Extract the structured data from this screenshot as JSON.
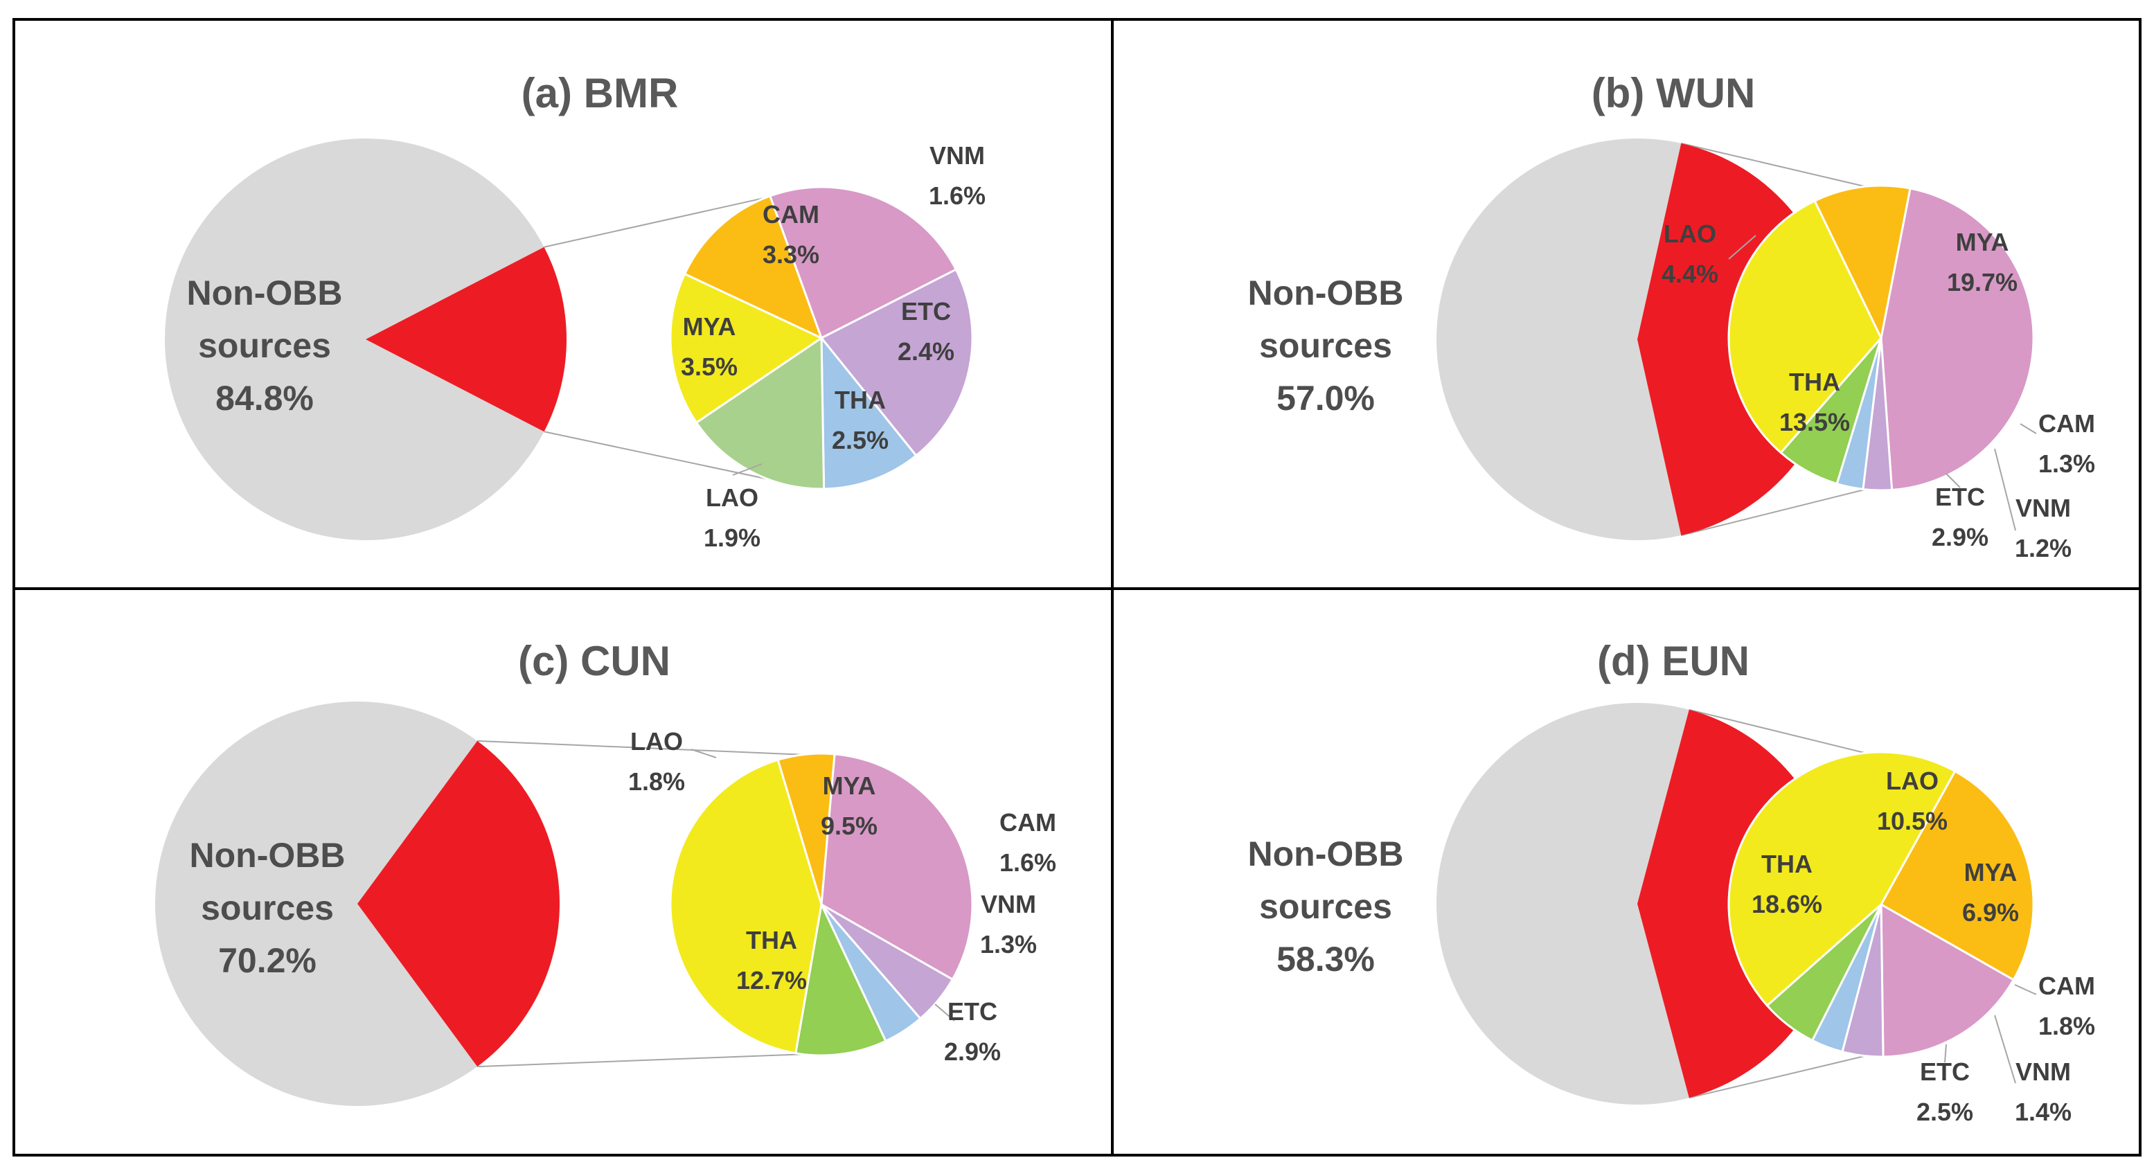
{
  "chart_data": [
    {
      "type": "pie",
      "title": "(a) BMR",
      "main": {
        "label_lines": [
          "Non-OBB",
          "sources"
        ],
        "value_label": "84.8%",
        "value": 84.8
      },
      "sub": [
        {
          "name": "CAM",
          "value_label": "3.3%",
          "value": 3.3,
          "color": "#c5a5d4"
        },
        {
          "name": "VNM",
          "value_label": "1.6%",
          "value": 1.6,
          "color": "#9fc5e8"
        },
        {
          "name": "ETC",
          "value_label": "2.4%",
          "value": 2.4,
          "color": "#a9d18e"
        },
        {
          "name": "THA",
          "value_label": "2.5%",
          "value": 2.5,
          "color": "#f2ea1c"
        },
        {
          "name": "LAO",
          "value_label": "1.9%",
          "value": 1.9,
          "color": "#fbbd13"
        },
        {
          "name": "MYA",
          "value_label": "3.5%",
          "value": 3.5,
          "color": "#d899c6"
        }
      ]
    },
    {
      "type": "pie",
      "title": "(b) WUN",
      "main": {
        "label_lines": [
          "Non-OBB",
          "sources"
        ],
        "value_label": "57.0%",
        "value": 57.0
      },
      "sub": [
        {
          "name": "MYA",
          "value_label": "19.7%",
          "value": 19.7,
          "color": "#d899c6"
        },
        {
          "name": "CAM",
          "value_label": "1.3%",
          "value": 1.3,
          "color": "#c5a5d4"
        },
        {
          "name": "VNM",
          "value_label": "1.2%",
          "value": 1.2,
          "color": "#9fc5e8"
        },
        {
          "name": "ETC",
          "value_label": "2.9%",
          "value": 2.9,
          "color": "#92cf52"
        },
        {
          "name": "THA",
          "value_label": "13.5%",
          "value": 13.5,
          "color": "#f2ea1c"
        },
        {
          "name": "LAO",
          "value_label": "4.4%",
          "value": 4.4,
          "color": "#fbbd13"
        }
      ]
    },
    {
      "type": "pie",
      "title": "(c) CUN",
      "main": {
        "label_lines": [
          "Non-OBB",
          "sources"
        ],
        "value_label": "70.2%",
        "value": 70.2
      },
      "sub": [
        {
          "name": "MYA",
          "value_label": "9.5%",
          "value": 9.5,
          "color": "#d899c6"
        },
        {
          "name": "CAM",
          "value_label": "1.6%",
          "value": 1.6,
          "color": "#c5a5d4"
        },
        {
          "name": "VNM",
          "value_label": "1.3%",
          "value": 1.3,
          "color": "#9fc5e8"
        },
        {
          "name": "ETC",
          "value_label": "2.9%",
          "value": 2.9,
          "color": "#92cf52"
        },
        {
          "name": "THA",
          "value_label": "12.7%",
          "value": 12.7,
          "color": "#f2ea1c"
        },
        {
          "name": "LAO",
          "value_label": "1.8%",
          "value": 1.8,
          "color": "#fbbd13"
        }
      ]
    },
    {
      "type": "pie",
      "title": "(d) EUN",
      "main": {
        "label_lines": [
          "Non-OBB",
          "sources"
        ],
        "value_label": "58.3%",
        "value": 58.3
      },
      "sub": [
        {
          "name": "LAO",
          "value_label": "10.5%",
          "value": 10.5,
          "color": "#fbbd13"
        },
        {
          "name": "MYA",
          "value_label": "6.9%",
          "value": 6.9,
          "color": "#d899c6"
        },
        {
          "name": "CAM",
          "value_label": "1.8%",
          "value": 1.8,
          "color": "#c5a5d4"
        },
        {
          "name": "VNM",
          "value_label": "1.4%",
          "value": 1.4,
          "color": "#9fc5e8"
        },
        {
          "name": "ETC",
          "value_label": "2.5%",
          "value": 2.5,
          "color": "#92cf52"
        },
        {
          "name": "THA",
          "value_label": "18.6%",
          "value": 18.6,
          "color": "#f2ea1c"
        }
      ]
    }
  ],
  "colors": {
    "main_other": "#d9d9d9",
    "obb_slice": "#ed1c24",
    "frame": "#000000",
    "connector": "#a6a6a6"
  }
}
